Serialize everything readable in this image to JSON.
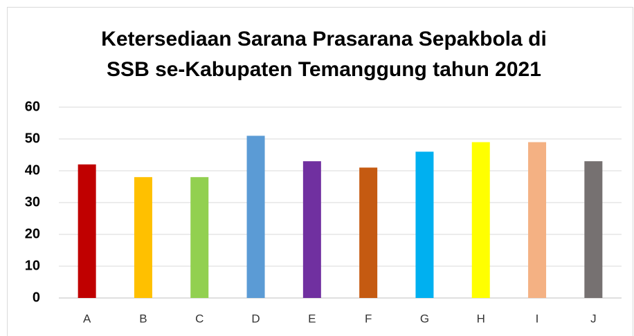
{
  "chart_data": {
    "type": "bar",
    "title": [
      "Ketersediaan Sarana Prasarana Sepakbola di",
      "SSB se-Kabupaten Temanggung tahun 2021"
    ],
    "categories": [
      "A",
      "B",
      "C",
      "D",
      "E",
      "F",
      "G",
      "H",
      "I",
      "J"
    ],
    "values": [
      42,
      38,
      38,
      51,
      43,
      41,
      46,
      49,
      49,
      43
    ],
    "colors": [
      "#c00000",
      "#ffc000",
      "#92d050",
      "#5b9bd5",
      "#7030a0",
      "#c55a11",
      "#00b0f0",
      "#ffff00",
      "#f4b183",
      "#767171"
    ],
    "ylim": [
      0,
      60
    ],
    "yticks": [
      0,
      10,
      20,
      30,
      40,
      50,
      60
    ],
    "grid": true
  }
}
